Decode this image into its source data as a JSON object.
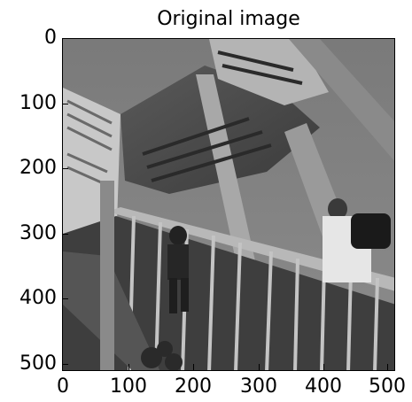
{
  "figure": {
    "title": "Original image",
    "image_description": "grayscale photo",
    "colormap": "gray"
  },
  "axes": {
    "y_ticks": [
      "0",
      "100",
      "200",
      "300",
      "400",
      "500"
    ],
    "x_ticks": [
      "0",
      "100",
      "200",
      "300",
      "400",
      "500"
    ],
    "x_range": [
      0,
      511
    ],
    "y_range": [
      0,
      511
    ],
    "y_inverted": true
  }
}
